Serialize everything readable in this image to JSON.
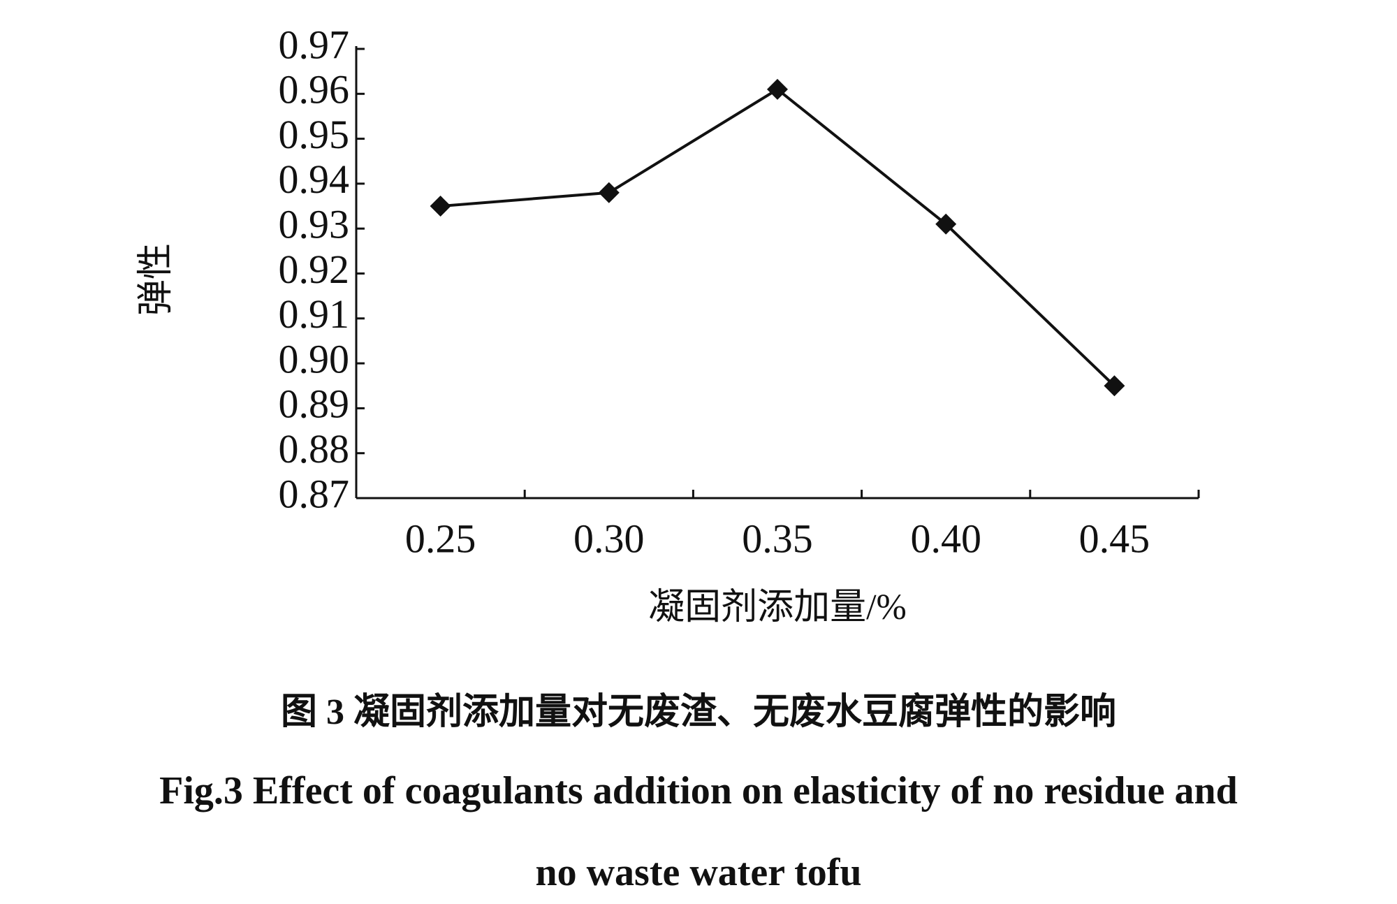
{
  "chart_data": {
    "type": "line",
    "y_label": "弹性",
    "x_label": "凝固剂添加量/%",
    "caption_cn": "图 3    凝固剂添加量对无废渣、无废水豆腐弹性的影响",
    "caption_en": [
      "Fig.3    Effect of coagulants addition on elasticity of no residue and",
      "no waste water tofu"
    ],
    "categories": [
      "0.25",
      "0.30",
      "0.35",
      "0.40",
      "0.45"
    ],
    "values": [
      0.935,
      0.938,
      0.961,
      0.931,
      0.895
    ],
    "color": "#111111",
    "ylim": [
      0.87,
      0.97
    ],
    "yticks": [
      0.87,
      0.88,
      0.89,
      {
        "value": 0.9,
        "label": "0.90"
      },
      0.91,
      0.92,
      0.93,
      0.94,
      0.95,
      0.96,
      0.97
    ]
  }
}
